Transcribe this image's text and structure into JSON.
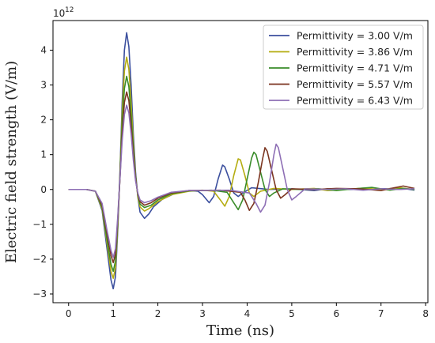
{
  "chart_data": {
    "type": "line",
    "xlabel": "Time (ns)",
    "ylabel": "Electric field strength (V/m)",
    "y_scale_label": "10",
    "y_scale_exponent": "12",
    "xlim": [
      -0.35,
      8.05
    ],
    "ylim": [
      -3.25,
      4.85
    ],
    "x_ticks": [
      0,
      1,
      2,
      3,
      4,
      5,
      6,
      7,
      8
    ],
    "x_tick_labels": [
      "0",
      "1",
      "2",
      "3",
      "4",
      "5",
      "6",
      "7",
      "8"
    ],
    "y_ticks": [
      -3,
      -2,
      -1,
      0,
      1,
      2,
      3,
      4
    ],
    "y_tick_labels": [
      "−3",
      "−2",
      "−1",
      "0",
      "1",
      "2",
      "3",
      "4"
    ],
    "grid": false,
    "legend_position": "top-right",
    "series": [
      {
        "name": "Permittivity = 3.00 V/m",
        "color": "#3b4f9e",
        "points": [
          [
            0,
            0
          ],
          [
            0.4,
            0
          ],
          [
            0.6,
            -0.05
          ],
          [
            0.75,
            -0.6
          ],
          [
            0.85,
            -1.6
          ],
          [
            0.95,
            -2.6
          ],
          [
            1.0,
            -2.85
          ],
          [
            1.05,
            -2.5
          ],
          [
            1.1,
            -1.2
          ],
          [
            1.15,
            0.5
          ],
          [
            1.2,
            2.5
          ],
          [
            1.25,
            4.0
          ],
          [
            1.3,
            4.5
          ],
          [
            1.35,
            4.1
          ],
          [
            1.4,
            3.0
          ],
          [
            1.45,
            1.6
          ],
          [
            1.5,
            0.5
          ],
          [
            1.55,
            -0.2
          ],
          [
            1.6,
            -0.65
          ],
          [
            1.7,
            -0.83
          ],
          [
            1.8,
            -0.7
          ],
          [
            1.9,
            -0.5
          ],
          [
            2.1,
            -0.28
          ],
          [
            2.4,
            -0.1
          ],
          [
            2.7,
            -0.03
          ],
          [
            2.9,
            -0.05
          ],
          [
            3.0,
            -0.15
          ],
          [
            3.15,
            -0.38
          ],
          [
            3.25,
            -0.2
          ],
          [
            3.35,
            0.3
          ],
          [
            3.45,
            0.7
          ],
          [
            3.5,
            0.65
          ],
          [
            3.6,
            0.3
          ],
          [
            3.7,
            -0.1
          ],
          [
            3.8,
            -0.2
          ],
          [
            3.9,
            -0.1
          ],
          [
            4.1,
            0.05
          ],
          [
            4.5,
            0.0
          ],
          [
            5.0,
            0.02
          ],
          [
            5.5,
            -0.03
          ],
          [
            5.8,
            0.02
          ],
          [
            6.0,
            0.0
          ],
          [
            6.5,
            0.0
          ],
          [
            7.0,
            0.02
          ],
          [
            7.5,
            0.03
          ],
          [
            7.75,
            -0.02
          ]
        ]
      },
      {
        "name": "Permittivity = 3.86 V/m",
        "color": "#b5ad12",
        "points": [
          [
            0,
            0
          ],
          [
            0.4,
            0
          ],
          [
            0.6,
            -0.05
          ],
          [
            0.75,
            -0.55
          ],
          [
            0.85,
            -1.45
          ],
          [
            0.95,
            -2.35
          ],
          [
            1.0,
            -2.55
          ],
          [
            1.05,
            -2.25
          ],
          [
            1.1,
            -1.1
          ],
          [
            1.15,
            0.4
          ],
          [
            1.2,
            2.2
          ],
          [
            1.25,
            3.4
          ],
          [
            1.3,
            3.8
          ],
          [
            1.35,
            3.45
          ],
          [
            1.4,
            2.5
          ],
          [
            1.45,
            1.35
          ],
          [
            1.5,
            0.4
          ],
          [
            1.55,
            -0.2
          ],
          [
            1.6,
            -0.5
          ],
          [
            1.7,
            -0.62
          ],
          [
            1.8,
            -0.55
          ],
          [
            2.0,
            -0.35
          ],
          [
            2.3,
            -0.15
          ],
          [
            2.7,
            -0.05
          ],
          [
            3.0,
            -0.02
          ],
          [
            3.25,
            -0.05
          ],
          [
            3.4,
            -0.3
          ],
          [
            3.5,
            -0.48
          ],
          [
            3.6,
            -0.2
          ],
          [
            3.7,
            0.4
          ],
          [
            3.8,
            0.88
          ],
          [
            3.85,
            0.85
          ],
          [
            3.95,
            0.4
          ],
          [
            4.05,
            -0.1
          ],
          [
            4.15,
            -0.2
          ],
          [
            4.3,
            -0.05
          ],
          [
            4.6,
            0.03
          ],
          [
            5.0,
            0.0
          ],
          [
            5.5,
            0.03
          ],
          [
            5.8,
            -0.03
          ],
          [
            6.2,
            0.0
          ],
          [
            6.6,
            0.04
          ],
          [
            7.0,
            0.0
          ],
          [
            7.4,
            0.05
          ],
          [
            7.75,
            0.0
          ]
        ]
      },
      {
        "name": "Permittivity = 4.71 V/m",
        "color": "#3a8c2a",
        "points": [
          [
            0,
            0
          ],
          [
            0.4,
            0
          ],
          [
            0.6,
            -0.05
          ],
          [
            0.75,
            -0.5
          ],
          [
            0.85,
            -1.35
          ],
          [
            0.95,
            -2.15
          ],
          [
            1.0,
            -2.35
          ],
          [
            1.05,
            -2.05
          ],
          [
            1.1,
            -1.0
          ],
          [
            1.15,
            0.35
          ],
          [
            1.2,
            1.9
          ],
          [
            1.25,
            2.9
          ],
          [
            1.3,
            3.25
          ],
          [
            1.35,
            2.95
          ],
          [
            1.4,
            2.15
          ],
          [
            1.45,
            1.15
          ],
          [
            1.5,
            0.35
          ],
          [
            1.55,
            -0.15
          ],
          [
            1.6,
            -0.42
          ],
          [
            1.7,
            -0.52
          ],
          [
            1.85,
            -0.45
          ],
          [
            2.0,
            -0.3
          ],
          [
            2.3,
            -0.12
          ],
          [
            2.7,
            -0.04
          ],
          [
            3.2,
            -0.02
          ],
          [
            3.55,
            -0.08
          ],
          [
            3.7,
            -0.38
          ],
          [
            3.8,
            -0.58
          ],
          [
            3.9,
            -0.3
          ],
          [
            4.0,
            0.3
          ],
          [
            4.1,
            0.9
          ],
          [
            4.15,
            1.07
          ],
          [
            4.2,
            1.0
          ],
          [
            4.3,
            0.5
          ],
          [
            4.4,
            0.0
          ],
          [
            4.5,
            -0.2
          ],
          [
            4.6,
            -0.1
          ],
          [
            4.8,
            0.02
          ],
          [
            5.2,
            0.0
          ],
          [
            5.6,
            0.02
          ],
          [
            6.0,
            -0.03
          ],
          [
            6.4,
            0.02
          ],
          [
            6.8,
            0.06
          ],
          [
            7.2,
            -0.02
          ],
          [
            7.5,
            0.03
          ],
          [
            7.75,
            0.0
          ]
        ]
      },
      {
        "name": "Permittivity = 5.57 V/m",
        "color": "#7b3520",
        "points": [
          [
            0,
            0
          ],
          [
            0.4,
            0
          ],
          [
            0.6,
            -0.05
          ],
          [
            0.75,
            -0.45
          ],
          [
            0.85,
            -1.2
          ],
          [
            0.95,
            -1.9
          ],
          [
            1.0,
            -2.1
          ],
          [
            1.05,
            -1.85
          ],
          [
            1.1,
            -0.9
          ],
          [
            1.15,
            0.3
          ],
          [
            1.2,
            1.6
          ],
          [
            1.25,
            2.5
          ],
          [
            1.3,
            2.8
          ],
          [
            1.35,
            2.55
          ],
          [
            1.4,
            1.85
          ],
          [
            1.45,
            1.0
          ],
          [
            1.5,
            0.3
          ],
          [
            1.55,
            -0.12
          ],
          [
            1.6,
            -0.35
          ],
          [
            1.7,
            -0.45
          ],
          [
            1.85,
            -0.38
          ],
          [
            2.0,
            -0.25
          ],
          [
            2.3,
            -0.1
          ],
          [
            2.7,
            -0.03
          ],
          [
            3.4,
            -0.02
          ],
          [
            3.85,
            -0.08
          ],
          [
            3.95,
            -0.3
          ],
          [
            4.05,
            -0.6
          ],
          [
            4.15,
            -0.4
          ],
          [
            4.25,
            0.2
          ],
          [
            4.35,
            0.9
          ],
          [
            4.4,
            1.2
          ],
          [
            4.45,
            1.1
          ],
          [
            4.55,
            0.55
          ],
          [
            4.65,
            0.0
          ],
          [
            4.75,
            -0.25
          ],
          [
            4.85,
            -0.15
          ],
          [
            5.0,
            0.02
          ],
          [
            5.5,
            0.0
          ],
          [
            6.0,
            0.03
          ],
          [
            6.5,
            0.02
          ],
          [
            7.0,
            -0.03
          ],
          [
            7.3,
            0.05
          ],
          [
            7.5,
            0.1
          ],
          [
            7.75,
            0.03
          ]
        ]
      },
      {
        "name": "Permittivity = 6.43 V/m",
        "color": "#8e6fb5",
        "points": [
          [
            0,
            0
          ],
          [
            0.4,
            0
          ],
          [
            0.6,
            -0.05
          ],
          [
            0.75,
            -0.4
          ],
          [
            0.85,
            -1.1
          ],
          [
            0.95,
            -1.75
          ],
          [
            1.0,
            -1.95
          ],
          [
            1.05,
            -1.7
          ],
          [
            1.1,
            -0.8
          ],
          [
            1.15,
            0.3
          ],
          [
            1.2,
            1.4
          ],
          [
            1.25,
            2.15
          ],
          [
            1.3,
            2.42
          ],
          [
            1.35,
            2.2
          ],
          [
            1.4,
            1.6
          ],
          [
            1.45,
            0.85
          ],
          [
            1.5,
            0.25
          ],
          [
            1.55,
            -0.1
          ],
          [
            1.6,
            -0.3
          ],
          [
            1.7,
            -0.38
          ],
          [
            1.85,
            -0.32
          ],
          [
            2.0,
            -0.22
          ],
          [
            2.3,
            -0.08
          ],
          [
            2.7,
            -0.03
          ],
          [
            3.6,
            -0.02
          ],
          [
            4.05,
            -0.1
          ],
          [
            4.2,
            -0.4
          ],
          [
            4.3,
            -0.65
          ],
          [
            4.4,
            -0.45
          ],
          [
            4.5,
            0.2
          ],
          [
            4.6,
            1.0
          ],
          [
            4.65,
            1.3
          ],
          [
            4.7,
            1.2
          ],
          [
            4.8,
            0.6
          ],
          [
            4.9,
            0.0
          ],
          [
            5.0,
            -0.3
          ],
          [
            5.1,
            -0.2
          ],
          [
            5.3,
            0.02
          ],
          [
            5.8,
            0.0
          ],
          [
            6.2,
            0.02
          ],
          [
            6.6,
            -0.02
          ],
          [
            7.0,
            0.02
          ],
          [
            7.4,
            0.0
          ],
          [
            7.75,
            0.02
          ]
        ]
      }
    ]
  }
}
